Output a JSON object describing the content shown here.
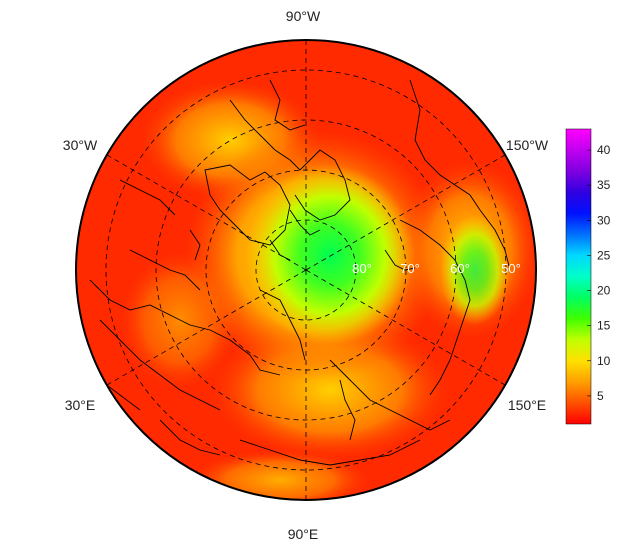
{
  "map": {
    "projection": "north-polar-stereographic",
    "center_latitude": 90,
    "longitude_labels": [
      {
        "id": "90w",
        "text": "90°W"
      },
      {
        "id": "30w",
        "text": "30°W"
      },
      {
        "id": "150w",
        "text": "150°W"
      },
      {
        "id": "30e",
        "text": "30°E"
      },
      {
        "id": "150e",
        "text": "150°E"
      },
      {
        "id": "90e",
        "text": "90°E"
      }
    ],
    "latitude_labels": [
      {
        "id": "80",
        "text": "80°"
      },
      {
        "id": "70",
        "text": "70°"
      },
      {
        "id": "60",
        "text": "60°"
      },
      {
        "id": "50",
        "text": "50°"
      }
    ],
    "graticule_style": "dashed",
    "coastlines": true
  },
  "colorbar": {
    "ticks": [
      "5",
      "10",
      "15",
      "20",
      "25",
      "30",
      "35",
      "40"
    ],
    "range": [
      1,
      43
    ],
    "colors": [
      "#ff0000",
      "#ff5000",
      "#ffa000",
      "#ffe000",
      "#c0ff00",
      "#40ff00",
      "#00ff60",
      "#00ffc8",
      "#00d8ff",
      "#0070ff",
      "#0010ff",
      "#3000e0",
      "#8000e0",
      "#c000f0",
      "#ff00ff"
    ]
  }
}
